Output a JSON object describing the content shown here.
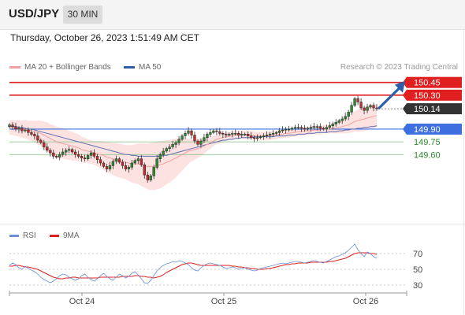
{
  "header": {
    "symbol": "USD/JPY",
    "timeframe": "30 MIN"
  },
  "timestamp": "Thursday, October 26, 2023 1:51:49 AM CET",
  "legend": {
    "ma20_label": "MA 20 + Bollinger Bands",
    "ma50_label": "MA 50",
    "credit": "Research © 2023 Trading Central",
    "rsi_label": "RSI",
    "rsi_ma_label": "9MA"
  },
  "colors": {
    "resistance": "#e02020",
    "support": "#3d6fe0",
    "target_green": "#2e8b2e",
    "last_price": "#333333",
    "candle_up": "#2e8b2e",
    "candle_down": "#cc2b2b",
    "ma20": "#f0a0a0",
    "ma50": "#5b6fb0",
    "band": "#fde2e2",
    "rsi": "#6a8fd8",
    "rsi_ma": "#e02020",
    "arrow": "#2f5ea6"
  },
  "chart_data": [
    {
      "type": "candlestick",
      "title": "USD/JPY 30 MIN",
      "x_ticks": [
        "Oct 24",
        "Oct 25",
        "Oct 26"
      ],
      "ylim": [
        148.86,
        150.54
      ],
      "levels": [
        {
          "value": 150.45,
          "label": "150.45",
          "kind": "resistance"
        },
        {
          "value": 150.3,
          "label": "150.30",
          "kind": "resistance"
        },
        {
          "value": 150.14,
          "label": "150.14",
          "kind": "last_price"
        },
        {
          "value": 149.9,
          "label": "149.90",
          "kind": "support"
        },
        {
          "value": 149.75,
          "label": "149.75",
          "kind": "target"
        },
        {
          "value": 149.6,
          "label": "149.60",
          "kind": "target"
        }
      ],
      "last_price": 150.14,
      "close_series": [
        149.95,
        149.93,
        149.9,
        149.91,
        149.88,
        149.89,
        149.86,
        149.84,
        149.82,
        149.77,
        149.74,
        149.69,
        149.65,
        149.62,
        149.58,
        149.57,
        149.6,
        149.63,
        149.65,
        149.66,
        149.63,
        149.6,
        149.58,
        149.56,
        149.55,
        149.59,
        149.62,
        149.58,
        149.54,
        149.5,
        149.46,
        149.43,
        149.47,
        149.52,
        149.55,
        149.51,
        149.47,
        149.43,
        149.45,
        149.5,
        149.53,
        149.55,
        149.48,
        149.36,
        149.3,
        149.35,
        149.45,
        149.55,
        149.6,
        149.64,
        149.67,
        149.69,
        149.72,
        149.74,
        149.78,
        149.82,
        149.85,
        149.88,
        149.83,
        149.76,
        149.72,
        149.76,
        149.8,
        149.84,
        149.86,
        149.88,
        149.87,
        149.85,
        149.84,
        149.83,
        149.84,
        149.85,
        149.85,
        149.83,
        149.84,
        149.84,
        149.82,
        149.8,
        149.79,
        149.8,
        149.81,
        149.82,
        149.83,
        149.84,
        149.85,
        149.86,
        149.88,
        149.89,
        149.9,
        149.9,
        149.91,
        149.92,
        149.92,
        149.91,
        149.9,
        149.91,
        149.92,
        149.93,
        149.93,
        149.91,
        149.9,
        149.92,
        149.94,
        149.96,
        149.98,
        150.0,
        150.02,
        150.05,
        150.1,
        150.18,
        150.26,
        150.22,
        150.15,
        150.12,
        150.16,
        150.18,
        150.15,
        150.14
      ],
      "ma20": [
        149.92,
        149.92,
        149.91,
        149.91,
        149.9,
        149.9,
        149.89,
        149.88,
        149.87,
        149.86,
        149.85,
        149.83,
        149.81,
        149.79,
        149.77,
        149.75,
        149.74,
        149.73,
        149.72,
        149.71,
        149.7,
        149.69,
        149.68,
        149.66,
        149.65,
        149.64,
        149.63,
        149.62,
        149.61,
        149.6,
        149.59,
        149.57,
        149.56,
        149.55,
        149.54,
        149.53,
        149.52,
        149.51,
        149.5,
        149.49,
        149.49,
        149.49,
        149.48,
        149.47,
        149.46,
        149.46,
        149.46,
        149.47,
        149.48,
        149.49,
        149.51,
        149.52,
        149.54,
        149.56,
        149.58,
        149.6,
        149.62,
        149.64,
        149.65,
        149.66,
        149.67,
        149.68,
        149.7,
        149.72,
        149.74,
        149.76,
        149.78,
        149.79,
        149.8,
        149.81,
        149.82,
        149.82,
        149.83,
        149.83,
        149.83,
        149.83,
        149.83,
        149.83,
        149.82,
        149.82,
        149.82,
        149.82,
        149.82,
        149.82,
        149.83,
        149.83,
        149.84,
        149.84,
        149.85,
        149.85,
        149.86,
        149.86,
        149.87,
        149.87,
        149.88,
        149.88,
        149.88,
        149.89,
        149.89,
        149.89,
        149.9,
        149.9,
        149.9,
        149.91,
        149.91,
        149.92,
        149.93,
        149.94,
        149.95,
        149.97,
        149.99,
        150.0,
        150.01,
        150.02,
        150.03,
        150.04,
        150.05,
        150.06
      ],
      "ma50": [
        149.94,
        149.93,
        149.93,
        149.92,
        149.92,
        149.91,
        149.9,
        149.9,
        149.89,
        149.88,
        149.87,
        149.86,
        149.85,
        149.84,
        149.83,
        149.82,
        149.81,
        149.8,
        149.79,
        149.78,
        149.77,
        149.76,
        149.75,
        149.74,
        149.73,
        149.72,
        149.71,
        149.7,
        149.69,
        149.68,
        149.67,
        149.66,
        149.65,
        149.64,
        149.63,
        149.62,
        149.61,
        149.6,
        149.6,
        149.59,
        149.59,
        149.58,
        149.58,
        149.58,
        149.58,
        149.58,
        149.58,
        149.58,
        149.58,
        149.59,
        149.59,
        149.6,
        149.61,
        149.62,
        149.63,
        149.64,
        149.65,
        149.66,
        149.67,
        149.68,
        149.69,
        149.7,
        149.71,
        149.72,
        149.73,
        149.74,
        149.75,
        149.76,
        149.77,
        149.77,
        149.78,
        149.78,
        149.79,
        149.79,
        149.8,
        149.8,
        149.8,
        149.8,
        149.81,
        149.81,
        149.81,
        149.81,
        149.81,
        149.81,
        149.81,
        149.82,
        149.82,
        149.82,
        149.82,
        149.83,
        149.83,
        149.83,
        149.84,
        149.84,
        149.84,
        149.85,
        149.85,
        149.85,
        149.86,
        149.86,
        149.86,
        149.86,
        149.87,
        149.87,
        149.87,
        149.88,
        149.88,
        149.89,
        149.89,
        149.9,
        149.9,
        149.91,
        149.91,
        149.92,
        149.92,
        149.93,
        149.93,
        149.94
      ],
      "band_half_width": [
        0.08,
        0.09,
        0.09,
        0.1,
        0.1,
        0.11,
        0.11,
        0.12,
        0.13,
        0.14,
        0.15,
        0.16,
        0.17,
        0.17,
        0.18,
        0.18,
        0.18,
        0.18,
        0.18,
        0.17,
        0.17,
        0.16,
        0.16,
        0.15,
        0.15,
        0.14,
        0.14,
        0.14,
        0.15,
        0.16,
        0.17,
        0.18,
        0.18,
        0.19,
        0.2,
        0.2,
        0.2,
        0.2,
        0.21,
        0.22,
        0.23,
        0.24,
        0.25,
        0.26,
        0.27,
        0.28,
        0.28,
        0.28,
        0.28,
        0.27,
        0.26,
        0.25,
        0.24,
        0.23,
        0.21,
        0.19,
        0.17,
        0.15,
        0.13,
        0.12,
        0.11,
        0.1,
        0.09,
        0.08,
        0.07,
        0.06,
        0.06,
        0.06,
        0.05,
        0.05,
        0.05,
        0.05,
        0.05,
        0.05,
        0.05,
        0.05,
        0.05,
        0.05,
        0.05,
        0.05,
        0.05,
        0.05,
        0.05,
        0.05,
        0.05,
        0.05,
        0.05,
        0.05,
        0.05,
        0.05,
        0.05,
        0.05,
        0.05,
        0.05,
        0.05,
        0.05,
        0.05,
        0.05,
        0.05,
        0.05,
        0.05,
        0.05,
        0.05,
        0.06,
        0.06,
        0.07,
        0.08,
        0.09,
        0.1,
        0.11,
        0.12,
        0.13,
        0.14,
        0.14,
        0.14,
        0.14,
        0.14,
        0.14
      ]
    },
    {
      "type": "line",
      "title": "RSI",
      "ylim": [
        20,
        80
      ],
      "y_ticks": [
        70,
        50,
        30
      ],
      "series": [
        {
          "name": "RSI",
          "values": [
            55,
            58,
            56,
            52,
            50,
            54,
            51,
            49,
            47,
            44,
            40,
            37,
            35,
            33,
            35,
            38,
            42,
            44,
            43,
            40,
            38,
            36,
            38,
            42,
            44,
            40,
            37,
            35,
            38,
            42,
            45,
            41,
            38,
            36,
            40,
            44,
            42,
            39,
            41,
            45,
            47,
            43,
            38,
            33,
            32,
            36,
            42,
            48,
            52,
            55,
            57,
            58,
            60,
            59,
            61,
            60,
            58,
            56,
            52,
            49,
            48,
            52,
            55,
            57,
            58,
            57,
            56,
            55,
            53,
            51,
            52,
            53,
            52,
            50,
            51,
            52,
            50,
            49,
            48,
            49,
            51,
            52,
            53,
            54,
            55,
            56,
            57,
            58,
            57,
            58,
            59,
            60,
            60,
            59,
            58,
            59,
            60,
            61,
            60,
            59,
            58,
            60,
            62,
            64,
            66,
            67,
            69,
            71,
            74,
            78,
            82,
            75,
            70,
            66,
            72,
            70,
            66,
            64
          ]
        },
        {
          "name": "9MA",
          "values": [
            54,
            54,
            55,
            55,
            54,
            53,
            53,
            52,
            51,
            50,
            48,
            46,
            44,
            42,
            40,
            39,
            38,
            38,
            39,
            39,
            40,
            40,
            39,
            39,
            39,
            39,
            39,
            39,
            39,
            40,
            40,
            40,
            40,
            40,
            40,
            40,
            41,
            41,
            41,
            41,
            42,
            42,
            41,
            41,
            40,
            40,
            39,
            40,
            41,
            43,
            46,
            48,
            50,
            52,
            54,
            56,
            57,
            58,
            58,
            57,
            56,
            55,
            55,
            55,
            55,
            55,
            55,
            55,
            55,
            55,
            55,
            54,
            54,
            53,
            53,
            52,
            52,
            51,
            51,
            50,
            50,
            50,
            51,
            51,
            52,
            53,
            54,
            55,
            56,
            56,
            57,
            57,
            58,
            58,
            58,
            58,
            59,
            59,
            59,
            59,
            59,
            59,
            60,
            60,
            61,
            62,
            63,
            64,
            66,
            68,
            70,
            71,
            71,
            71,
            71,
            70,
            70,
            69
          ]
        }
      ]
    }
  ]
}
